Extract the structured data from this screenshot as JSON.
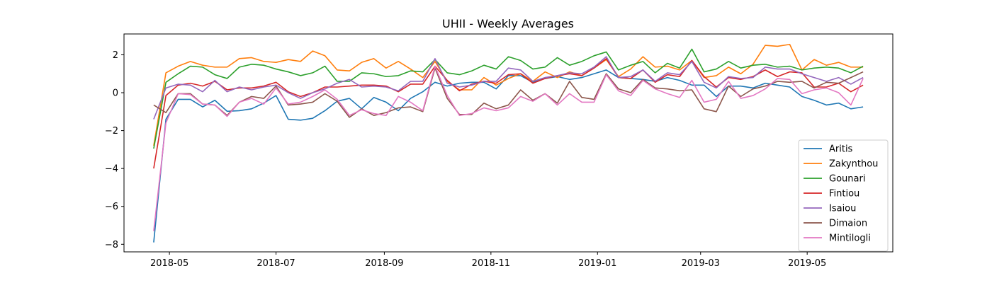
{
  "chart_data": {
    "type": "line",
    "title": "UHII - Weekly Averages",
    "xlabel": "",
    "ylabel": "",
    "x": [
      "2018-04-22",
      "2018-04-29",
      "2018-05-06",
      "2018-05-13",
      "2018-05-20",
      "2018-05-27",
      "2018-06-03",
      "2018-06-10",
      "2018-06-17",
      "2018-06-24",
      "2018-07-01",
      "2018-07-08",
      "2018-07-15",
      "2018-07-22",
      "2018-07-29",
      "2018-08-05",
      "2018-08-12",
      "2018-08-19",
      "2018-08-26",
      "2018-09-02",
      "2018-09-09",
      "2018-09-16",
      "2018-09-23",
      "2018-09-30",
      "2018-10-07",
      "2018-10-14",
      "2018-10-21",
      "2018-10-28",
      "2018-11-04",
      "2018-11-11",
      "2018-11-18",
      "2018-11-25",
      "2018-12-02",
      "2018-12-09",
      "2018-12-16",
      "2018-12-23",
      "2018-12-30",
      "2019-01-06",
      "2019-01-13",
      "2019-01-20",
      "2019-01-27",
      "2019-02-03",
      "2019-02-10",
      "2019-02-17",
      "2019-02-24",
      "2019-03-03",
      "2019-03-10",
      "2019-03-17",
      "2019-03-24",
      "2019-03-31",
      "2019-04-07",
      "2019-04-14",
      "2019-04-21",
      "2019-04-28",
      "2019-05-05",
      "2019-05-12",
      "2019-05-19",
      "2019-05-26",
      "2019-06-02"
    ],
    "xticks": [
      "2018-05-01",
      "2018-07-01",
      "2018-09-01",
      "2018-11-01",
      "2019-01-01",
      "2019-03-01",
      "2019-05-01"
    ],
    "xtick_labels": [
      "2018-05",
      "2018-07",
      "2018-09",
      "2018-11",
      "2019-01",
      "2019-03",
      "2019-05"
    ],
    "xlim": [
      "2018-04-05",
      "2019-06-19"
    ],
    "ylim": [
      -8.4,
      3.1
    ],
    "yticks": [
      2,
      0,
      -2,
      -4,
      -6,
      -8
    ],
    "legend_position": "lower-right",
    "grid": false,
    "series": [
      {
        "name": "Aritis",
        "color": "#1f77b4",
        "values": [
          -7.9,
          -1.4,
          -0.35,
          -0.35,
          -0.75,
          -0.4,
          -0.98,
          -0.95,
          -0.85,
          -0.55,
          -0.15,
          -1.4,
          -1.45,
          -1.35,
          -0.95,
          -0.45,
          -0.3,
          -0.85,
          -0.25,
          -0.5,
          -0.95,
          -0.3,
          0.05,
          0.55,
          0.35,
          0.5,
          0.55,
          0.55,
          0.2,
          0.9,
          0.9,
          0.55,
          0.75,
          0.85,
          0.7,
          0.8,
          1.0,
          1.2,
          0.8,
          0.75,
          0.7,
          0.6,
          0.8,
          0.65,
          0.4,
          0.4,
          -0.2,
          0.35,
          0.35,
          0.25,
          0.5,
          0.4,
          0.3,
          -0.2,
          -0.4,
          -0.65,
          -0.55,
          -0.85,
          -0.75
        ]
      },
      {
        "name": "Zakynthou",
        "color": "#ff7f0e",
        "values": [
          -2.8,
          1.05,
          1.4,
          1.65,
          1.45,
          1.35,
          1.35,
          1.8,
          1.85,
          1.65,
          1.6,
          1.75,
          1.65,
          2.2,
          1.95,
          1.2,
          1.15,
          1.6,
          1.8,
          1.3,
          1.65,
          1.25,
          0.8,
          1.65,
          0.6,
          0.15,
          0.15,
          0.8,
          0.4,
          0.75,
          1.0,
          0.6,
          1.1,
          0.8,
          1.1,
          0.9,
          1.3,
          1.75,
          0.85,
          1.25,
          1.9,
          1.35,
          1.4,
          1.2,
          1.7,
          0.8,
          0.9,
          1.35,
          1.0,
          1.5,
          2.5,
          2.45,
          2.55,
          1.2,
          1.75,
          1.45,
          1.6,
          1.35,
          1.35
        ]
      },
      {
        "name": "Gounari",
        "color": "#2ca02c",
        "values": [
          -2.95,
          0.55,
          1.0,
          1.4,
          1.35,
          0.95,
          0.75,
          1.35,
          1.5,
          1.45,
          1.25,
          1.1,
          0.9,
          1.05,
          1.4,
          0.6,
          0.6,
          1.05,
          1.0,
          0.85,
          0.9,
          1.15,
          1.1,
          1.75,
          1.05,
          0.95,
          1.15,
          1.45,
          1.25,
          1.9,
          1.7,
          1.25,
          1.35,
          1.85,
          1.45,
          1.65,
          1.95,
          2.15,
          1.2,
          1.45,
          1.65,
          1.05,
          1.55,
          1.3,
          2.3,
          1.1,
          1.25,
          1.65,
          1.3,
          1.45,
          1.5,
          1.35,
          1.4,
          1.2,
          1.3,
          1.35,
          1.3,
          1.05,
          1.4
        ]
      },
      {
        "name": "Fintiou",
        "color": "#d62728",
        "values": [
          -4.0,
          -0.15,
          0.4,
          0.5,
          0.35,
          0.6,
          0.15,
          0.25,
          0.25,
          0.35,
          0.55,
          0.05,
          -0.2,
          0.0,
          0.3,
          0.3,
          0.35,
          0.4,
          0.4,
          0.35,
          0.05,
          0.45,
          0.45,
          1.4,
          0.65,
          0.1,
          0.45,
          0.6,
          0.5,
          0.95,
          1.0,
          0.5,
          0.75,
          0.9,
          1.0,
          0.9,
          1.3,
          1.8,
          0.8,
          0.75,
          1.2,
          0.55,
          0.95,
          0.85,
          1.7,
          0.85,
          0.3,
          0.8,
          0.7,
          0.85,
          1.2,
          0.85,
          1.1,
          1.05,
          0.3,
          0.3,
          0.5,
          0.05,
          0.4
        ]
      },
      {
        "name": "Isaiou",
        "color": "#9467bd",
        "values": [
          -1.4,
          0.25,
          0.45,
          0.4,
          0.05,
          0.65,
          0.05,
          0.3,
          0.15,
          0.3,
          0.4,
          0.0,
          -0.3,
          0.0,
          0.2,
          0.5,
          0.7,
          0.3,
          0.35,
          0.3,
          0.1,
          0.6,
          0.6,
          1.8,
          0.5,
          0.3,
          0.4,
          0.6,
          0.6,
          1.3,
          1.2,
          0.6,
          0.8,
          0.9,
          1.05,
          1.0,
          1.35,
          1.9,
          0.8,
          0.85,
          1.2,
          0.6,
          1.05,
          0.95,
          1.65,
          0.55,
          0.25,
          0.85,
          0.75,
          0.8,
          1.35,
          1.25,
          1.25,
          1.0,
          0.8,
          0.6,
          0.8,
          0.45,
          0.8
        ]
      },
      {
        "name": "Dimaion",
        "color": "#8c564b",
        "values": [
          -0.65,
          -1.05,
          -0.05,
          -0.05,
          -0.6,
          -0.65,
          -1.2,
          -0.5,
          -0.2,
          -0.3,
          0.35,
          -0.65,
          -0.6,
          -0.5,
          -0.05,
          -0.45,
          -1.3,
          -0.85,
          -1.2,
          -1.05,
          -0.8,
          -0.75,
          -1.0,
          1.3,
          -0.3,
          -1.15,
          -1.15,
          -0.55,
          -0.85,
          -0.65,
          0.15,
          -0.4,
          -0.05,
          -0.55,
          0.6,
          -0.25,
          -0.35,
          1.0,
          0.2,
          0.0,
          0.7,
          0.25,
          0.2,
          0.1,
          0.15,
          -0.85,
          -1.0,
          0.35,
          -0.2,
          0.2,
          0.35,
          0.6,
          0.55,
          0.6,
          0.25,
          0.55,
          0.5,
          0.8,
          1.1
        ]
      },
      {
        "name": "Mintilogli",
        "color": "#e377c2",
        "values": [
          -7.3,
          -1.6,
          -0.05,
          -0.1,
          -0.6,
          -0.65,
          -1.25,
          -0.5,
          -0.3,
          -0.6,
          0.25,
          -0.6,
          -0.5,
          -0.2,
          0.15,
          -0.35,
          -1.2,
          -0.9,
          -1.1,
          -1.2,
          -0.2,
          -0.5,
          -0.95,
          1.4,
          -0.15,
          -1.2,
          -1.1,
          -0.8,
          -0.95,
          -0.8,
          -0.2,
          -0.45,
          -0.05,
          -0.65,
          -0.05,
          -0.5,
          -0.5,
          0.95,
          0.1,
          -0.15,
          0.65,
          0.2,
          -0.05,
          -0.25,
          0.65,
          -0.5,
          -0.35,
          0.6,
          -0.3,
          -0.15,
          0.2,
          0.75,
          0.7,
          -0.05,
          0.15,
          0.25,
          0.0,
          -0.65,
          0.75
        ]
      }
    ]
  }
}
